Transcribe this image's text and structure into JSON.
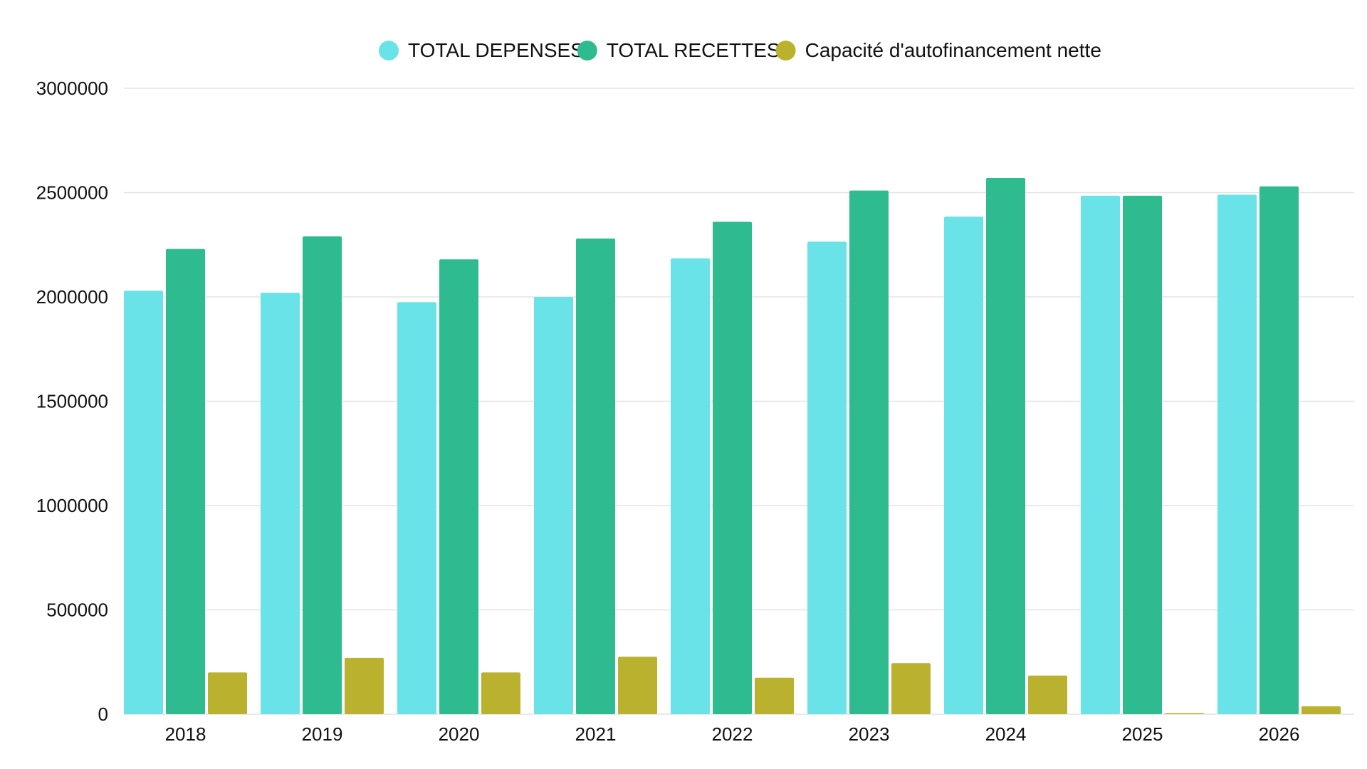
{
  "chart_data": {
    "type": "bar",
    "categories": [
      "2018",
      "2019",
      "2020",
      "2021",
      "2022",
      "2023",
      "2024",
      "2025",
      "2026"
    ],
    "series": [
      {
        "name": "TOTAL DEPENSES",
        "color": "#6ae3e8",
        "values": [
          2030000,
          2020000,
          1975000,
          2000000,
          2185000,
          2265000,
          2385000,
          2485000,
          2490000
        ]
      },
      {
        "name": "TOTAL RECETTES",
        "color": "#2ebb8f",
        "values": [
          2230000,
          2290000,
          2180000,
          2280000,
          2360000,
          2510000,
          2570000,
          2485000,
          2530000
        ]
      },
      {
        "name": "Capacité d'autofinancement nette",
        "color": "#bab22e",
        "values": [
          200000,
          270000,
          200000,
          275000,
          175000,
          245000,
          185000,
          0,
          38000
        ]
      }
    ],
    "y_ticks": [
      "0",
      "500000",
      "1000000",
      "1500000",
      "2000000",
      "2500000",
      "3000000"
    ],
    "ylim": [
      0,
      3000000
    ],
    "legend_position": "top-center",
    "grid": true,
    "title": "",
    "xlabel": "",
    "ylabel": ""
  }
}
